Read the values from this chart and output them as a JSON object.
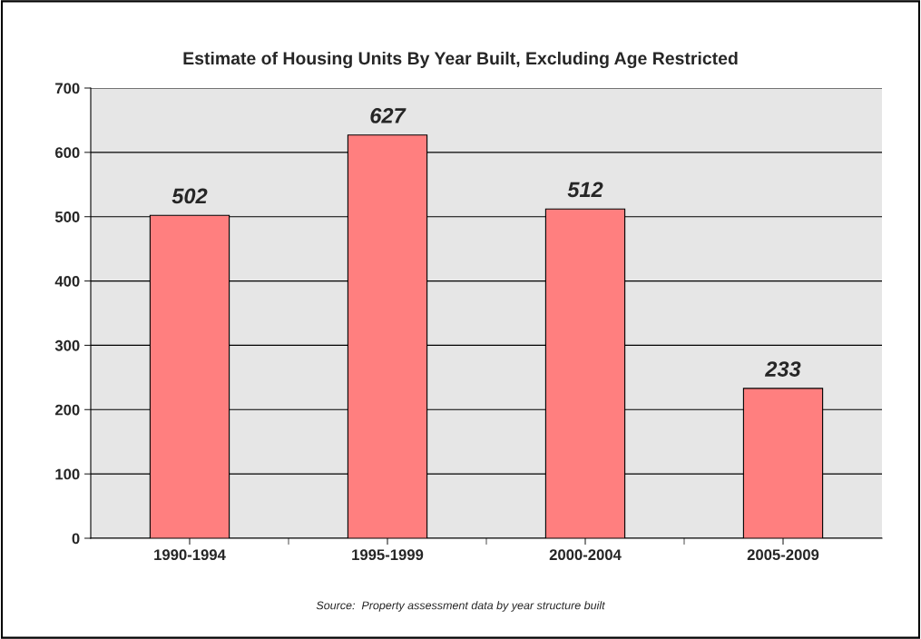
{
  "chart_data": {
    "type": "bar",
    "title": "Estimate of Housing Units By Year Built, Excluding Age Restricted",
    "categories": [
      "1990-1994",
      "1995-1999",
      "2000-2004",
      "2005-2009"
    ],
    "values": [
      502,
      627,
      512,
      233
    ],
    "color": "#ff7f7f",
    "ylim": [
      0,
      700
    ],
    "yticks": [
      0,
      100,
      200,
      300,
      400,
      500,
      600,
      700
    ],
    "grid": "y",
    "data_labels": true,
    "annotations": [
      "Source:  Property assessment data by year structure built"
    ]
  }
}
